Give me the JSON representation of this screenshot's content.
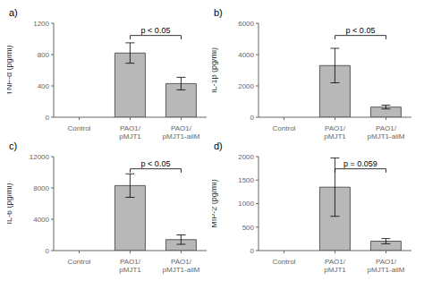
{
  "chart_data": [
    {
      "type": "bar",
      "title": "a)",
      "ylabel": "TNF-α (pg/ml)",
      "categories": [
        "Control",
        "PAO1/\npMJT1",
        "PAO1/\npMJT1-aiiM"
      ],
      "values": [
        0,
        820,
        430
      ],
      "errors": [
        0,
        130,
        80
      ],
      "color": "#b8b8b8",
      "ylim": [
        0,
        1200
      ],
      "yticks": [
        0,
        400,
        800,
        1200
      ],
      "annotations": [
        {
          "text": "p < 0.05",
          "categories": [
            "PAO1/\npMJT1",
            "PAO1/\npMJT1-aiiM"
          ]
        }
      ]
    },
    {
      "type": "bar",
      "title": "b)",
      "ylabel": "IL-1β (pg/ml)",
      "categories": [
        "Control",
        "PAO1/\npMJT1",
        "PAO1/\npMJT1-aiiM"
      ],
      "values": [
        0,
        3300,
        650
      ],
      "errors": [
        0,
        1100,
        120
      ],
      "color": "#b8b8b8",
      "ylim": [
        0,
        6000
      ],
      "yticks": [
        0,
        2000,
        4000,
        6000
      ],
      "annotations": [
        {
          "text": "p < 0.05",
          "categories": [
            "PAO1/\npMJT1",
            "PAO1/\npMJT1-aiiM"
          ]
        }
      ]
    },
    {
      "type": "bar",
      "title": "c)",
      "ylabel": "IL-6 (pg/ml)",
      "categories": [
        "Control",
        "PAO1/\npMJT1",
        "PAO1/\npMJT1-aiiM"
      ],
      "values": [
        0,
        8300,
        1400
      ],
      "errors": [
        0,
        1500,
        600
      ],
      "color": "#b8b8b8",
      "ylim": [
        0,
        12000
      ],
      "yticks": [
        0,
        4000,
        8000,
        12000
      ],
      "annotations": [
        {
          "text": "p < 0.05",
          "categories": [
            "PAO1/\npMJT1",
            "PAO1/\npMJT1-aiiM"
          ]
        }
      ]
    },
    {
      "type": "bar",
      "title": "d)",
      "ylabel": "MIP-2 (pg/ml)",
      "categories": [
        "Control",
        "PAO1/\npMJT1",
        "PAO1/\npMJT1-aiiM"
      ],
      "values": [
        0,
        1350,
        200
      ],
      "errors": [
        0,
        620,
        55
      ],
      "color": "#b8b8b8",
      "ylim": [
        0,
        2000
      ],
      "yticks": [
        0,
        500,
        1000,
        1500,
        2000
      ],
      "annotations": [
        {
          "text": "p = 0.059",
          "categories": [
            "PAO1/\npMJT1",
            "PAO1/\npMJT1-aiiM"
          ]
        }
      ]
    }
  ]
}
